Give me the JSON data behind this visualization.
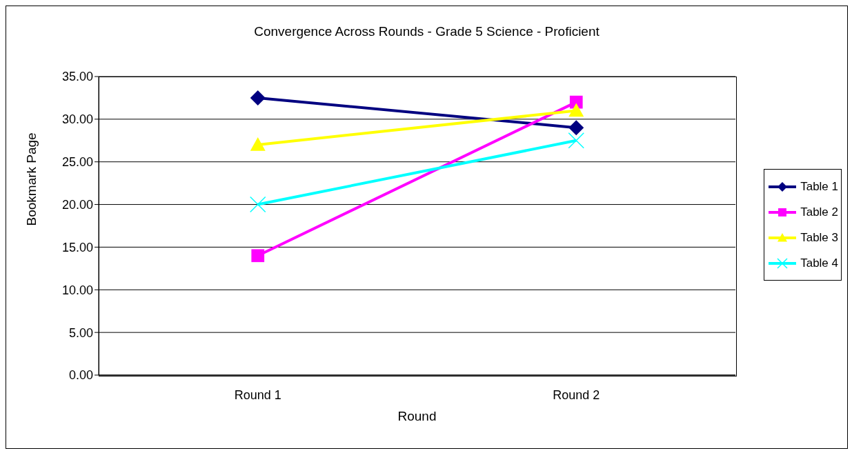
{
  "chart_data": {
    "type": "line",
    "title": "Convergence Across Rounds - Grade 5 Science - Proficient",
    "xlabel": "Round",
    "ylabel": "Bookmark Page",
    "categories": [
      "Round 1",
      "Round 2"
    ],
    "series": [
      {
        "name": "Table 1",
        "color": "#000080",
        "values": [
          32.5,
          29.0
        ],
        "marker": "diamond"
      },
      {
        "name": "Table 2",
        "color": "#ff00ff",
        "values": [
          14.0,
          32.0
        ],
        "marker": "square"
      },
      {
        "name": "Table 3",
        "color": "#ffff00",
        "values": [
          27.0,
          31.0
        ],
        "marker": "triangle"
      },
      {
        "name": "Table 4",
        "color": "#00ffff",
        "values": [
          20.0,
          27.5
        ],
        "marker": "cross"
      }
    ],
    "ylim": [
      0,
      35
    ],
    "yticks": [
      {
        "value": 0,
        "label": "0.00"
      },
      {
        "value": 5,
        "label": "5.00"
      },
      {
        "value": 10,
        "label": "10.00"
      },
      {
        "value": 15,
        "label": "15.00"
      },
      {
        "value": 20,
        "label": "20.00"
      },
      {
        "value": 25,
        "label": "25.00"
      },
      {
        "value": 30,
        "label": "30.00"
      },
      {
        "value": 35,
        "label": "35.00"
      }
    ],
    "grid": "y",
    "legend": "right",
    "line_style": "solid"
  }
}
